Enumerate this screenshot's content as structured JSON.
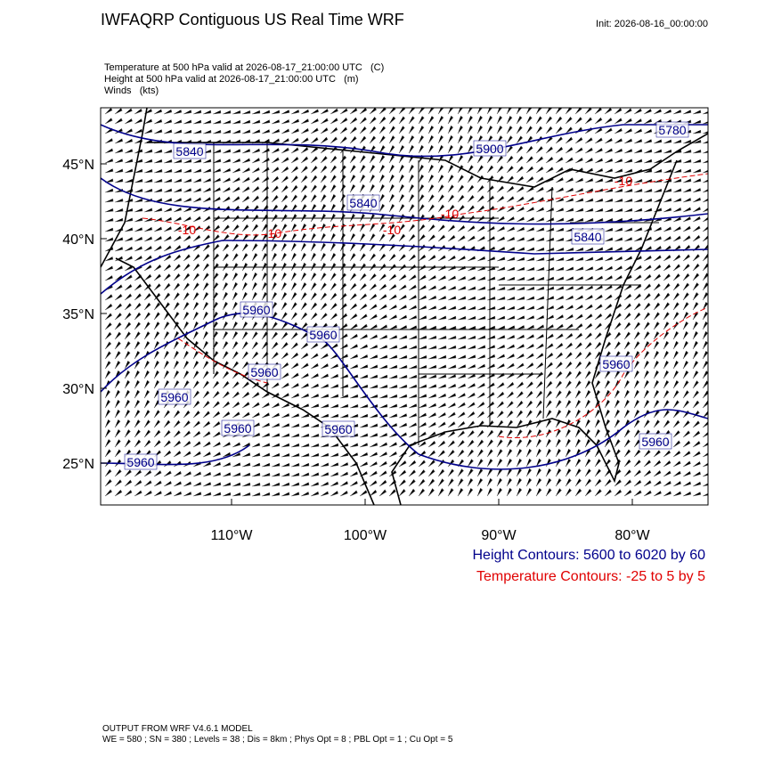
{
  "header": {
    "title": "IWFAQRP Contiguous US Real Time WRF",
    "init": "Init: 2026-08-16_00:00:00"
  },
  "fields": [
    "Temperature at 500 hPa valid at 2026-08-17_21:00:00 UTC   (C)",
    "Height at 500 hPa valid at 2026-08-17_21:00:00 UTC   (m)",
    "Winds   (kts)"
  ],
  "map": {
    "lat_labels": [
      "45°N",
      "40°N",
      "35°N",
      "30°N",
      "25°N"
    ],
    "lon_labels": [
      "110°W",
      "100°W",
      "90°W",
      "80°W"
    ],
    "height_labels": [
      "5840",
      "5900",
      "5780",
      "5840",
      "5840",
      "5960",
      "5960",
      "5960",
      "5960",
      "5960",
      "5960",
      "5960",
      "5960",
      "5960"
    ],
    "temperature_labels": [
      "-10",
      "-10",
      "-10",
      "-10",
      "-10"
    ]
  },
  "legend": {
    "height": "Height Contours: 5600 to 6020 by 60",
    "temperature": "Temperature Contours: -25 to 5 by 5"
  },
  "footer": [
    "OUTPUT FROM WRF V4.6.1 MODEL",
    "WE = 580 ; SN = 380 ; Levels = 38 ; Dis = 8km ; Phys Opt = 8 ; PBL Opt = 1 ; Cu Opt = 5"
  ]
}
